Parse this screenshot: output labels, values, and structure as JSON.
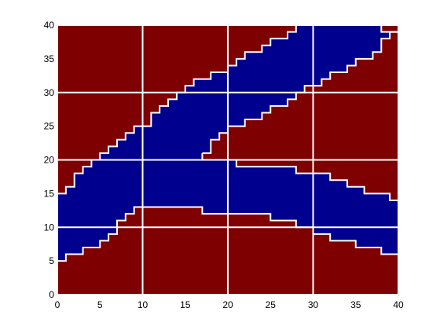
{
  "chart_data": {
    "type": "heatmap",
    "title": "",
    "xlabel": "",
    "ylabel": "",
    "xlim": [
      0,
      40
    ],
    "ylim": [
      0,
      40
    ],
    "x_ticks": [
      "0",
      "5",
      "10",
      "15",
      "20",
      "25",
      "30",
      "35",
      "40"
    ],
    "y_ticks": [
      "0",
      "5",
      "10",
      "15",
      "20",
      "25",
      "30",
      "35",
      "40"
    ],
    "grid": true,
    "grid_spacing": 10,
    "legend": "none",
    "colors": {
      "outside": "#7f0000",
      "inside": "#00008f",
      "grid": "#ffffff",
      "background": "#ffffff"
    },
    "region_columns": {
      "x_start": [
        0,
        1,
        2,
        3,
        4,
        5,
        6,
        7,
        8,
        9,
        10,
        11,
        12,
        13,
        14,
        15,
        16,
        17,
        18,
        19,
        20,
        21,
        22,
        23,
        24,
        25,
        26,
        27,
        28,
        29,
        30,
        31,
        32,
        33,
        34,
        35,
        36,
        37,
        38,
        39
      ],
      "lower_outer": [
        5,
        6,
        6,
        7,
        7,
        8,
        9,
        11,
        12,
        13,
        13,
        13,
        13,
        13,
        13,
        13,
        13,
        12,
        12,
        12,
        12,
        12,
        12,
        12,
        12,
        11,
        11,
        11,
        10,
        10,
        9,
        9,
        8,
        8,
        8,
        7,
        7,
        7,
        6,
        6
      ],
      "upper_outer": [
        15,
        16,
        18,
        19,
        20,
        21,
        22,
        23,
        24,
        25,
        25,
        27,
        28,
        29,
        30,
        31,
        32,
        32,
        33,
        33,
        34,
        35,
        36,
        36,
        37,
        38,
        38,
        39,
        40,
        40,
        40,
        40,
        40,
        40,
        40,
        40,
        40,
        40,
        39,
        39
      ],
      "lower_band_top": [
        null,
        null,
        null,
        null,
        null,
        null,
        null,
        null,
        null,
        null,
        null,
        null,
        null,
        null,
        null,
        null,
        null,
        21,
        23,
        24,
        25,
        25,
        26,
        26,
        27,
        28,
        28,
        29,
        30,
        31,
        31,
        32,
        33,
        33,
        34,
        35,
        35,
        36,
        38,
        39
      ],
      "upper_band_bottom": [
        null,
        null,
        null,
        null,
        null,
        null,
        null,
        null,
        null,
        null,
        null,
        null,
        null,
        null,
        null,
        null,
        null,
        20,
        20,
        20,
        20,
        19,
        19,
        19,
        19,
        19,
        19,
        19,
        18,
        18,
        18,
        18,
        17,
        17,
        16,
        16,
        15,
        15,
        15,
        14
      ]
    }
  }
}
